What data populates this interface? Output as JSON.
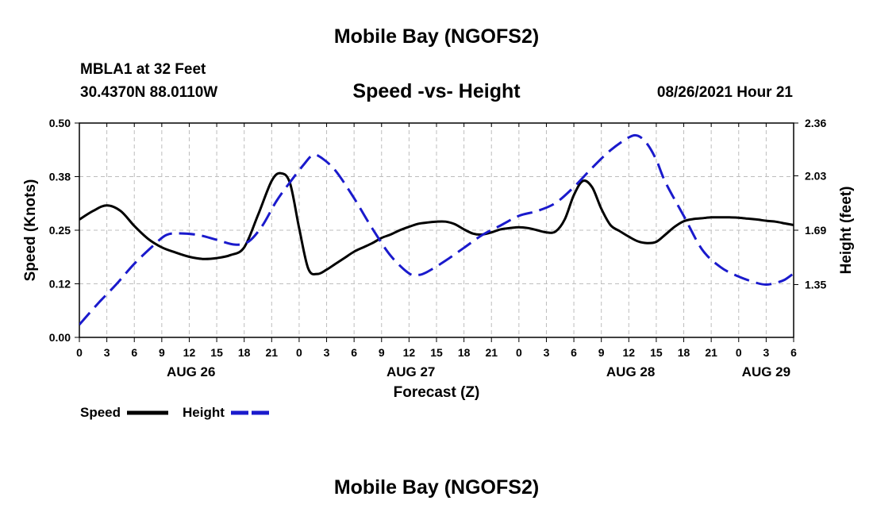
{
  "header": {
    "title": "Mobile Bay (NGOFS2)",
    "station": "MBLA1 at 32 Feet",
    "coords": "30.4370N  88.0110W",
    "subtitle": "Speed -vs- Height",
    "timestamp": "08/26/2021 Hour 21"
  },
  "footer": {
    "title": "Mobile Bay (NGOFS2)"
  },
  "colors": {
    "speed": "#000000",
    "height": "#1a1acc",
    "grid": "#bdbdbd"
  },
  "chart_data": {
    "type": "line",
    "title": "Speed -vs- Height",
    "xlabel": "Forecast (Z)",
    "ylabel": "Speed (Knots)",
    "y2label": "Height (feet)",
    "xlim": [
      0,
      78
    ],
    "ylim": [
      0,
      0.5
    ],
    "y2lim": [
      1.02,
      2.36
    ],
    "x_ticks": [
      0,
      3,
      6,
      9,
      12,
      15,
      18,
      21,
      24,
      27,
      30,
      33,
      36,
      39,
      42,
      45,
      48,
      51,
      54,
      57,
      60,
      63,
      66,
      69,
      72,
      75,
      78
    ],
    "x_tick_labels": [
      "0",
      "3",
      "6",
      "9",
      "12",
      "15",
      "18",
      "21",
      "0",
      "3",
      "6",
      "9",
      "12",
      "15",
      "18",
      "21",
      "0",
      "3",
      "6",
      "9",
      "12",
      "15",
      "18",
      "21",
      "0",
      "3",
      "6"
    ],
    "y_ticks": [
      0,
      0.125,
      0.25,
      0.375,
      0.5
    ],
    "y_tick_labels": [
      "0.00",
      "0.12",
      "0.25",
      "0.38",
      "0.50"
    ],
    "y2_ticks": [
      1.35,
      1.69,
      2.03,
      2.36
    ],
    "y2_tick_labels": [
      "1.35",
      "1.69",
      "2.03",
      "2.36"
    ],
    "date_labels": [
      {
        "label": "AUG 26",
        "x": 12.2
      },
      {
        "label": "AUG 27",
        "x": 36.2
      },
      {
        "label": "AUG 28",
        "x": 60.2
      },
      {
        "label": "AUG 29",
        "x": 75
      }
    ],
    "grid": true,
    "legend": {
      "position": "bottom-left",
      "speed_label": "Speed",
      "height_label": "Height"
    },
    "series": [
      {
        "name": "Speed",
        "axis": "left",
        "style": "solid",
        "x": [
          0,
          1.5,
          3,
          4.5,
          6,
          7.5,
          9,
          10.5,
          12,
          13.5,
          15,
          16.5,
          18,
          19.5,
          21,
          22,
          23,
          24,
          25,
          26,
          27,
          28,
          29,
          30,
          31,
          32,
          33,
          34,
          35,
          36,
          37,
          38,
          39,
          40,
          41,
          42,
          43,
          44,
          45,
          46,
          47,
          48,
          49,
          50,
          51,
          52,
          53,
          54,
          55,
          56,
          57,
          58,
          59,
          60,
          61,
          62,
          63,
          64,
          65,
          66,
          67,
          68,
          69,
          70,
          71,
          72,
          73,
          74,
          75,
          76,
          77,
          78
        ],
        "values": [
          0.275,
          0.295,
          0.308,
          0.295,
          0.26,
          0.23,
          0.21,
          0.198,
          0.188,
          0.183,
          0.185,
          0.192,
          0.21,
          0.285,
          0.365,
          0.383,
          0.36,
          0.255,
          0.16,
          0.148,
          0.158,
          0.172,
          0.186,
          0.2,
          0.21,
          0.22,
          0.232,
          0.24,
          0.25,
          0.258,
          0.265,
          0.268,
          0.27,
          0.27,
          0.264,
          0.252,
          0.242,
          0.24,
          0.245,
          0.252,
          0.255,
          0.257,
          0.255,
          0.25,
          0.245,
          0.247,
          0.275,
          0.332,
          0.365,
          0.35,
          0.3,
          0.262,
          0.248,
          0.235,
          0.224,
          0.22,
          0.223,
          0.24,
          0.258,
          0.271,
          0.276,
          0.278,
          0.28,
          0.28,
          0.28,
          0.279,
          0.277,
          0.275,
          0.272,
          0.27,
          0.266,
          0.262
        ]
      },
      {
        "name": "Height",
        "axis": "right",
        "style": "dashed",
        "x": [
          0,
          2,
          4,
          6,
          8,
          9.5,
          11,
          13,
          15,
          17,
          18.5,
          20,
          21.5,
          23,
          24.5,
          25.5,
          26.5,
          28,
          30,
          32,
          34,
          36,
          37,
          38,
          40,
          42,
          44,
          46,
          48,
          50,
          52,
          54,
          56,
          58,
          60,
          61,
          62,
          63,
          64,
          66,
          68,
          70,
          72,
          74,
          75,
          76,
          77,
          78
        ],
        "values": [
          1.1,
          1.23,
          1.35,
          1.48,
          1.59,
          1.66,
          1.67,
          1.66,
          1.63,
          1.6,
          1.62,
          1.72,
          1.87,
          1.99,
          2.1,
          2.16,
          2.14,
          2.06,
          1.89,
          1.7,
          1.53,
          1.42,
          1.41,
          1.43,
          1.5,
          1.58,
          1.66,
          1.72,
          1.78,
          1.81,
          1.86,
          1.96,
          2.08,
          2.19,
          2.27,
          2.28,
          2.23,
          2.13,
          1.99,
          1.78,
          1.57,
          1.46,
          1.4,
          1.36,
          1.35,
          1.36,
          1.38,
          1.42
        ]
      }
    ]
  }
}
